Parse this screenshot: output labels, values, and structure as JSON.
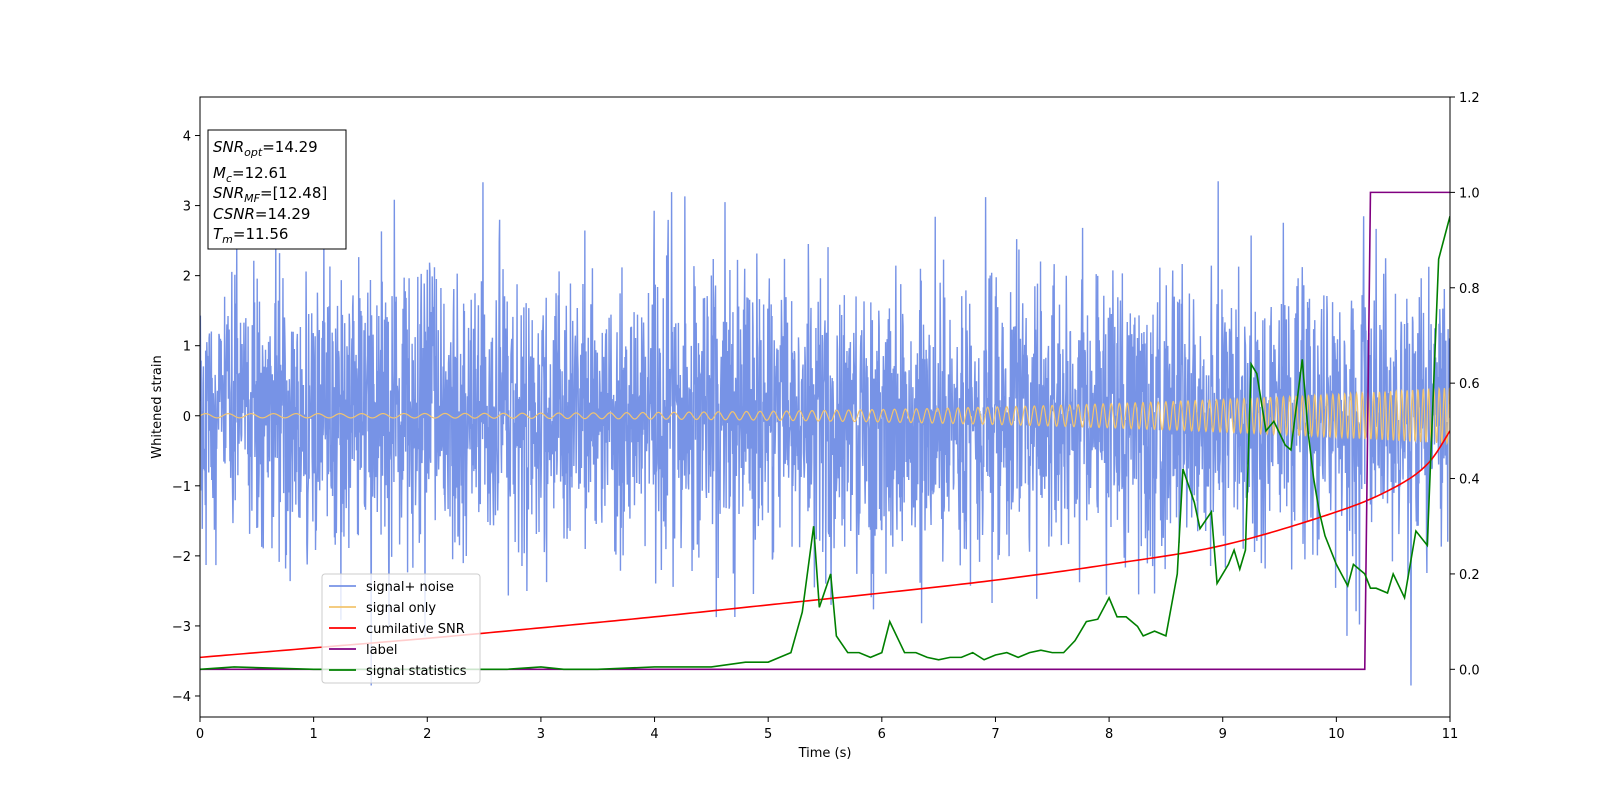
{
  "chart_data": {
    "type": "line",
    "title": "",
    "xlabel": "Time (s)",
    "ylabel": "Whitened strain",
    "ylabel_right": "",
    "xlim": [
      0,
      11
    ],
    "ylim": [
      -4.3,
      4.55
    ],
    "ylim_right": [
      -0.1,
      1.2
    ],
    "x_ticks": [
      "0",
      "1",
      "2",
      "3",
      "4",
      "5",
      "6",
      "7",
      "8",
      "9",
      "10",
      "11"
    ],
    "y_ticks": [
      "−4",
      "−3",
      "−2",
      "−1",
      "0",
      "1",
      "2",
      "3",
      "4"
    ],
    "y_ticks_right": [
      "0.0",
      "0.2",
      "0.4",
      "0.6",
      "0.8",
      "1.0",
      "1.2"
    ],
    "grid": false,
    "legend_placement": "lower-left",
    "annotation_box": {
      "lines": [
        {
          "main": "SNR",
          "sub": "opt",
          "value": "=14.29"
        },
        {
          "main": "M",
          "sub": "c",
          "value": "=12.61"
        },
        {
          "main": "SNR",
          "sub": "MF",
          "value": "=[12.48]"
        },
        {
          "main": "CSNR",
          "sub": "",
          "value": "=14.29"
        },
        {
          "main": "T",
          "sub": "m",
          "value": "=11.56"
        }
      ]
    },
    "series": [
      {
        "name": "signal+ noise",
        "axis": "left",
        "color": "#7793e6",
        "style": "noise",
        "sample_rate_per_s": 300,
        "std": 1.0,
        "range_observed": [
          -3.85,
          4.17
        ]
      },
      {
        "name": "signal only",
        "axis": "left",
        "color": "#f2c46f",
        "style": "chirp",
        "amplitude_start": 0.03,
        "amplitude_end": 0.4,
        "freq_start_hz": 5,
        "freq_end_hz": 22
      },
      {
        "name": "cumilative SNR",
        "axis": "right",
        "color": "#ff0000",
        "x": [
          0,
          1,
          2,
          3,
          4,
          5,
          6,
          7,
          8,
          9,
          10,
          10.5,
          10.8,
          11
        ],
        "values": [
          0.025,
          0.045,
          0.065,
          0.087,
          0.11,
          0.135,
          0.16,
          0.187,
          0.22,
          0.26,
          0.33,
          0.38,
          0.43,
          0.5
        ]
      },
      {
        "name": "label",
        "axis": "right",
        "color": "#800080",
        "x": [
          0,
          10.25,
          10.3,
          11
        ],
        "values": [
          0,
          0,
          1,
          1
        ]
      },
      {
        "name": "signal statistics",
        "axis": "right",
        "color": "#008000",
        "x": [
          0,
          0.3,
          1,
          2,
          2.7,
          3,
          3.2,
          3.5,
          4,
          4.5,
          4.8,
          5.0,
          5.1,
          5.2,
          5.3,
          5.4,
          5.45,
          5.55,
          5.6,
          5.7,
          5.8,
          5.9,
          6.0,
          6.07,
          6.15,
          6.2,
          6.3,
          6.4,
          6.5,
          6.6,
          6.7,
          6.8,
          6.9,
          7.0,
          7.1,
          7.2,
          7.3,
          7.4,
          7.5,
          7.6,
          7.7,
          7.8,
          7.9,
          8.0,
          8.07,
          8.15,
          8.25,
          8.3,
          8.4,
          8.5,
          8.6,
          8.65,
          8.75,
          8.8,
          8.9,
          8.95,
          9.05,
          9.1,
          9.15,
          9.2,
          9.25,
          9.3,
          9.38,
          9.45,
          9.55,
          9.6,
          9.7,
          9.75,
          9.8,
          9.85,
          9.9,
          10.0,
          10.1,
          10.15,
          10.25,
          10.3,
          10.35,
          10.45,
          10.5,
          10.6,
          10.7,
          10.8,
          10.9,
          11.0
        ],
        "values": [
          0.0,
          0.005,
          0.0,
          0.0,
          0.0,
          0.005,
          0.0,
          0.0,
          0.005,
          0.005,
          0.015,
          0.015,
          0.025,
          0.035,
          0.12,
          0.3,
          0.13,
          0.2,
          0.07,
          0.035,
          0.035,
          0.025,
          0.035,
          0.1,
          0.06,
          0.035,
          0.035,
          0.025,
          0.02,
          0.025,
          0.025,
          0.035,
          0.02,
          0.03,
          0.035,
          0.025,
          0.035,
          0.04,
          0.035,
          0.035,
          0.06,
          0.1,
          0.105,
          0.15,
          0.11,
          0.11,
          0.09,
          0.07,
          0.08,
          0.07,
          0.2,
          0.42,
          0.35,
          0.295,
          0.33,
          0.18,
          0.22,
          0.25,
          0.21,
          0.25,
          0.64,
          0.62,
          0.5,
          0.52,
          0.47,
          0.46,
          0.65,
          0.5,
          0.4,
          0.33,
          0.28,
          0.22,
          0.175,
          0.22,
          0.2,
          0.17,
          0.17,
          0.16,
          0.2,
          0.15,
          0.29,
          0.26,
          0.86,
          0.95
        ]
      }
    ]
  }
}
